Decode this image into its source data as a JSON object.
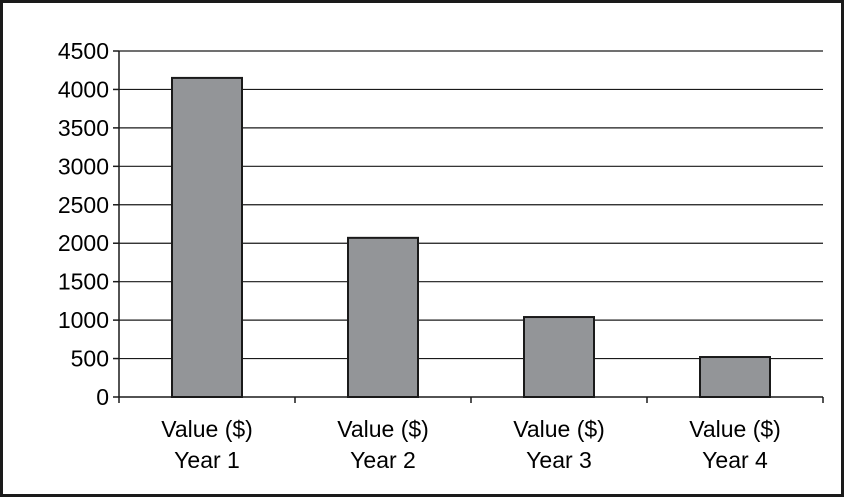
{
  "chart_data": {
    "type": "bar",
    "categories": [
      [
        "Value ($)",
        "Year 1"
      ],
      [
        "Value ($)",
        "Year 2"
      ],
      [
        "Value ($)",
        "Year 3"
      ],
      [
        "Value ($)",
        "Year 4"
      ]
    ],
    "values": [
      4150,
      2070,
      1040,
      520
    ],
    "title": "",
    "xlabel": "",
    "ylabel": "",
    "ylim": [
      0,
      4500
    ],
    "yticks": [
      "0",
      "500",
      "1000",
      "1500",
      "2000",
      "2500",
      "3000",
      "3500",
      "4000",
      "4500"
    ],
    "grid": true,
    "legend": "none",
    "bar_color": "#939598",
    "bar_edge_color": "#1a1a1a"
  }
}
